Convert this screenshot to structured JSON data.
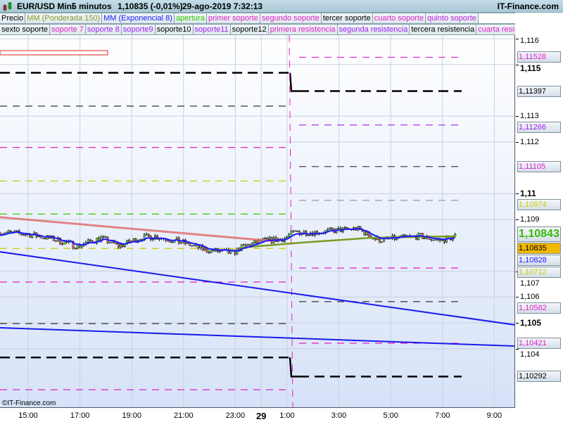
{
  "header": {
    "symbol": "EUR/USD Mini",
    "interval": "5 minutos",
    "quote": "1,10835 (-0,01%)",
    "datetime": "29-ago-2019 7:32:13",
    "brand": "IT-Finance.com"
  },
  "legend": {
    "row1": [
      {
        "label": "Precio",
        "color": "#000000"
      },
      {
        "label": "MM (Ponderada 150)",
        "color": "#8c9a2c"
      },
      {
        "label": "MM (Exponencial 8)",
        "color": "#1a1aff"
      },
      {
        "label": "apertura",
        "color": "#33cc00"
      },
      {
        "label": "primer soporte",
        "color": "#e020c8"
      },
      {
        "label": "segundo soporte",
        "color": "#e020c8"
      },
      {
        "label": "tercer soporte",
        "color": "#000000"
      },
      {
        "label": "cuarto soporte",
        "color": "#e020c8"
      },
      {
        "label": "quinto soporte",
        "color": "#c020e0"
      }
    ],
    "row2": [
      {
        "label": "sexto soporte",
        "color": "#000000"
      },
      {
        "label": "soporte 7",
        "color": "#e020c8"
      },
      {
        "label": "soporte 8",
        "color": "#a020f0"
      },
      {
        "label": "soporte9",
        "color": "#a020f0"
      },
      {
        "label": "soporte10",
        "color": "#000000"
      },
      {
        "label": "soporte11",
        "color": "#a020f0"
      },
      {
        "label": "soporte12",
        "color": "#000000"
      },
      {
        "label": "primera resistencia",
        "color": "#e020c8"
      },
      {
        "label": "segunda resistencia",
        "color": "#a020f0"
      },
      {
        "label": "tercera resistencia",
        "color": "#000000"
      },
      {
        "label": "cuarta resistencia",
        "color": "#e020c8"
      }
    ]
  },
  "price_axis": {
    "ticks": [
      {
        "v": "1,116",
        "p": 1.116,
        "bold": false
      },
      {
        "v": "1,115",
        "p": 1.115,
        "bold": true
      },
      {
        "v": "1,113",
        "p": 1.113,
        "bold": false
      },
      {
        "v": "1,112",
        "p": 1.112,
        "bold": false
      },
      {
        "v": "1,11",
        "p": 1.11,
        "bold": true
      },
      {
        "v": "1,109",
        "p": 1.109,
        "bold": false
      },
      {
        "v": "1,107",
        "p": 1.107,
        "bold": false
      },
      {
        "v": "1,106",
        "p": 1.106,
        "bold": false
      },
      {
        "v": "1,105",
        "p": 1.105,
        "bold": true
      },
      {
        "v": "1,104",
        "p": 1.104,
        "bold": false
      }
    ],
    "labels": [
      {
        "v": "1,11528",
        "p": 1.11528,
        "color": "#e020c8"
      },
      {
        "v": "1,11397",
        "p": 1.11397,
        "color": "#000000"
      },
      {
        "v": "1,11266",
        "p": 1.11266,
        "color": "#a020f0"
      },
      {
        "v": "1,11105",
        "p": 1.11105,
        "color": "#e020c8"
      },
      {
        "v": "1,10974",
        "p": 1.10974,
        "color": "#cccc00"
      },
      {
        "v": "1,10835",
        "p": 1.10835,
        "color": "#000000",
        "bg": "#f0b800"
      },
      {
        "v": "1,10828",
        "p": 1.10828,
        "color": "#1a1aff"
      },
      {
        "v": "1,10712",
        "p": 1.10712,
        "color": "#cccc00"
      },
      {
        "v": "1,10582",
        "p": 1.10582,
        "color": "#e020c8"
      },
      {
        "v": "1,10421",
        "p": 1.10421,
        "color": "#e020c8"
      },
      {
        "v": "1,10292",
        "p": 1.10292,
        "color": "#000000"
      }
    ],
    "current": {
      "v": "1,10843",
      "p": 1.10843,
      "color": "#33bb00"
    }
  },
  "time_axis": [
    {
      "v": "15:00",
      "h": 15
    },
    {
      "v": "17:00",
      "h": 17
    },
    {
      "v": "19:00",
      "h": 19
    },
    {
      "v": "21:00",
      "h": 21
    },
    {
      "v": "23:00",
      "h": 23
    },
    {
      "v": "29",
      "h": 24,
      "bold": true
    },
    {
      "v": "1:00",
      "h": 25
    },
    {
      "v": "3:00",
      "h": 27
    },
    {
      "v": "5:00",
      "h": 29
    },
    {
      "v": "7:00",
      "h": 31
    },
    {
      "v": "9:00",
      "h": 33
    }
  ],
  "levels_prev": [
    {
      "p": 1.11468,
      "color": "#000000",
      "thick": true
    },
    {
      "p": 1.11339,
      "color": "#333333"
    },
    {
      "p": 1.11179,
      "color": "#e020c8"
    },
    {
      "p": 1.11049,
      "color": "#cccc00"
    },
    {
      "p": 1.10921,
      "color": "#33cc00"
    },
    {
      "p": 1.10788,
      "color": "#cccc00"
    },
    {
      "p": 1.10658,
      "color": "#e020c8"
    },
    {
      "p": 1.10497,
      "color": "#333333"
    },
    {
      "p": 1.10366,
      "color": "#000000",
      "thick": true
    },
    {
      "p": 1.10241,
      "color": "#e020c8"
    }
  ],
  "levels_today": [
    {
      "p": 1.11528,
      "color": "#e020c8"
    },
    {
      "p": 1.11397,
      "color": "#000000",
      "thick": true
    },
    {
      "p": 1.11266,
      "color": "#a020f0"
    },
    {
      "p": 1.11105,
      "color": "#333333"
    },
    {
      "p": 1.10974,
      "color": "#999999"
    },
    {
      "p": 1.10712,
      "color": "#e020c8"
    },
    {
      "p": 1.10582,
      "color": "#333333"
    },
    {
      "p": 1.10421,
      "color": "#e020c8"
    },
    {
      "p": 1.10292,
      "color": "#000000",
      "thick": true
    }
  ],
  "price_path": [
    [
      13.9,
      1.10851
    ],
    [
      15.0,
      1.10843
    ],
    [
      16.0,
      1.10824
    ],
    [
      16.9,
      1.10797
    ],
    [
      17.8,
      1.10829
    ],
    [
      18.5,
      1.10797
    ],
    [
      19.3,
      1.10829
    ],
    [
      19.9,
      1.10835
    ],
    [
      21.0,
      1.1081
    ],
    [
      21.8,
      1.10783
    ],
    [
      22.9,
      1.1077
    ],
    [
      23.2,
      1.10791
    ],
    [
      24.0,
      1.10816
    ],
    [
      24.8,
      1.10824
    ],
    [
      25.3,
      1.10851
    ],
    [
      26.1,
      1.10851
    ],
    [
      27.7,
      1.10865
    ],
    [
      28.5,
      1.10819
    ],
    [
      29.3,
      1.10829
    ],
    [
      30.1,
      1.10835
    ],
    [
      30.9,
      1.10819
    ],
    [
      31.5,
      1.10835
    ]
  ],
  "wma150": [
    [
      13.9,
      1.10909
    ],
    [
      24.5,
      1.10816
    ]
  ],
  "wma150_today": [
    [
      23.2,
      1.10791
    ],
    [
      25.5,
      1.1081
    ],
    [
      28.2,
      1.10829
    ],
    [
      31.5,
      1.10835
    ]
  ],
  "trendlines": [
    {
      "from": [
        13.9,
        1.10775
      ],
      "to": [
        33.8,
        1.10492
      ]
    },
    {
      "from": [
        13.9,
        1.10481
      ],
      "to": [
        33.8,
        1.1041
      ]
    }
  ],
  "copyright": "©IT-Finance.com"
}
